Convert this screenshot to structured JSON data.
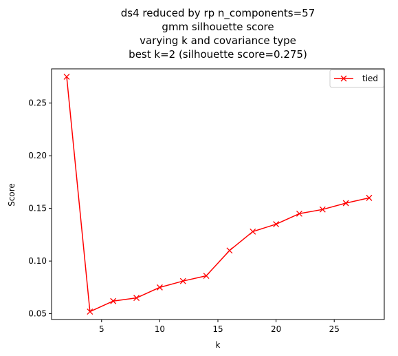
{
  "chart_data": {
    "type": "line",
    "title_lines": [
      "ds4 reduced by rp n_components=57",
      "gmm silhouette score",
      "varying k and covariance type",
      "best k=2 (silhouette score=0.275)"
    ],
    "xlabel": "k",
    "ylabel": "Score",
    "xlim": [
      0.7,
      29.3
    ],
    "ylim": [
      0.0445,
      0.2825
    ],
    "xticks": [
      {
        "value": 5,
        "label": "5"
      },
      {
        "value": 10,
        "label": "10"
      },
      {
        "value": 15,
        "label": "15"
      },
      {
        "value": 20,
        "label": "20"
      },
      {
        "value": 25,
        "label": "25"
      }
    ],
    "yticks": [
      {
        "value": 0.05,
        "label": "0.05"
      },
      {
        "value": 0.1,
        "label": "0.10"
      },
      {
        "value": 0.15,
        "label": "0.15"
      },
      {
        "value": 0.2,
        "label": "0.20"
      },
      {
        "value": 0.25,
        "label": "0.25"
      }
    ],
    "grid": false,
    "legend_position": "top-right",
    "series": [
      {
        "name": "tied",
        "color": "#ff0000",
        "marker": "x",
        "x": [
          2,
          4,
          6,
          8,
          10,
          12,
          14,
          16,
          18,
          20,
          22,
          24,
          26,
          28
        ],
        "y": [
          0.275,
          0.052,
          0.062,
          0.065,
          0.075,
          0.081,
          0.086,
          0.11,
          0.128,
          0.135,
          0.145,
          0.149,
          0.155,
          0.16
        ]
      }
    ]
  }
}
